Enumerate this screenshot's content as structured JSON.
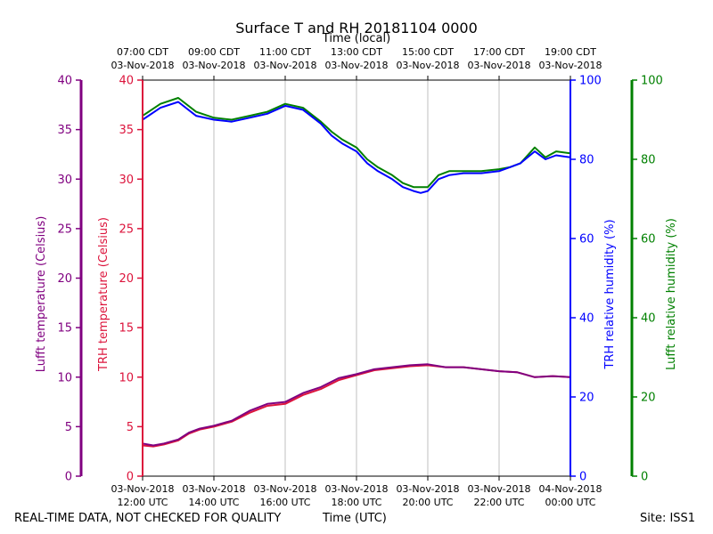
{
  "chart_data": {
    "type": "line",
    "title": "Surface T and RH 20181104 0000",
    "xlabel_bottom": "Time (UTC)",
    "xlabel_top": "Time (local)",
    "x_unit": "hours UTC (relative to 03-Nov-2018 00:00 UTC)",
    "xlim": [
      12,
      24
    ],
    "bottom_ticks": [
      {
        "x": 12,
        "line1": "03-Nov-2018",
        "line2": "12:00 UTC"
      },
      {
        "x": 14,
        "line1": "03-Nov-2018",
        "line2": "14:00 UTC"
      },
      {
        "x": 16,
        "line1": "03-Nov-2018",
        "line2": "16:00 UTC"
      },
      {
        "x": 18,
        "line1": "03-Nov-2018",
        "line2": "18:00 UTC"
      },
      {
        "x": 20,
        "line1": "03-Nov-2018",
        "line2": "20:00 UTC"
      },
      {
        "x": 22,
        "line1": "03-Nov-2018",
        "line2": "22:00 UTC"
      },
      {
        "x": 24,
        "line1": "04-Nov-2018",
        "line2": "00:00 UTC"
      }
    ],
    "top_ticks": [
      {
        "x": 12,
        "line1": "07:00 CDT",
        "line2": "03-Nov-2018"
      },
      {
        "x": 14,
        "line1": "09:00 CDT",
        "line2": "03-Nov-2018"
      },
      {
        "x": 16,
        "line1": "11:00 CDT",
        "line2": "03-Nov-2018"
      },
      {
        "x": 18,
        "line1": "13:00 CDT",
        "line2": "03-Nov-2018"
      },
      {
        "x": 20,
        "line1": "15:00 CDT",
        "line2": "03-Nov-2018"
      },
      {
        "x": 22,
        "line1": "17:00 CDT",
        "line2": "03-Nov-2018"
      },
      {
        "x": 24,
        "line1": "19:00 CDT",
        "line2": "03-Nov-2018"
      }
    ],
    "axes": {
      "lufft_temp": {
        "label": "Lufft temperature (Celsius)",
        "ylim": [
          0,
          40
        ],
        "ticks": [
          0,
          5,
          10,
          15,
          20,
          25,
          30,
          35,
          40
        ],
        "color": "#800080"
      },
      "trh_temp": {
        "label": "TRH temperature (Celsius)",
        "ylim": [
          0,
          40
        ],
        "ticks": [
          0,
          5,
          10,
          15,
          20,
          25,
          30,
          35,
          40
        ],
        "color": "#dc143c"
      },
      "trh_rh": {
        "label": "TRH relative humidity (%)",
        "ylim": [
          0,
          100
        ],
        "ticks": [
          0,
          20,
          40,
          60,
          80,
          100
        ],
        "color": "#0000ff"
      },
      "lufft_rh": {
        "label": "Lufft relative humidity (%)",
        "ylim": [
          0,
          100
        ],
        "ticks": [
          0,
          20,
          40,
          60,
          80,
          100
        ],
        "color": "#008000"
      }
    },
    "grid": "vertical",
    "series": [
      {
        "name": "Lufft relative humidity",
        "axis": "lufft_rh",
        "color": "#008000",
        "x": [
          12.0,
          12.5,
          13.0,
          13.5,
          14.0,
          14.5,
          15.0,
          15.5,
          16.0,
          16.5,
          17.0,
          17.3,
          17.6,
          18.0,
          18.3,
          18.6,
          19.0,
          19.3,
          19.6,
          19.8,
          20.0,
          20.3,
          20.6,
          21.0,
          21.5,
          22.0,
          22.3,
          22.6,
          23.0,
          23.3,
          23.6,
          24.0
        ],
        "y": [
          91,
          94,
          95.5,
          92,
          90.5,
          90,
          91,
          92,
          94,
          93,
          89.5,
          87,
          85,
          83,
          80,
          78,
          76,
          74,
          73,
          73,
          73,
          76,
          77,
          77,
          77,
          77.5,
          78,
          79,
          83,
          80.5,
          82,
          81.5
        ]
      },
      {
        "name": "TRH relative humidity",
        "axis": "trh_rh",
        "color": "#0000ff",
        "x": [
          12.0,
          12.5,
          13.0,
          13.5,
          14.0,
          14.5,
          15.0,
          15.5,
          16.0,
          16.5,
          17.0,
          17.3,
          17.6,
          18.0,
          18.3,
          18.6,
          19.0,
          19.3,
          19.6,
          19.8,
          20.0,
          20.3,
          20.6,
          21.0,
          21.5,
          22.0,
          22.3,
          22.6,
          23.0,
          23.3,
          23.6,
          24.0
        ],
        "y": [
          90,
          93,
          94.5,
          91,
          90,
          89.5,
          90.5,
          91.5,
          93.5,
          92.5,
          89,
          86,
          84,
          82,
          79,
          77,
          75,
          73,
          72,
          71.5,
          72,
          75,
          76,
          76.5,
          76.5,
          77,
          78,
          79,
          82,
          80,
          81,
          80.5
        ]
      },
      {
        "name": "TRH temperature",
        "axis": "trh_temp",
        "color": "#dc143c",
        "x": [
          12.0,
          12.3,
          12.6,
          13.0,
          13.3,
          13.6,
          14.0,
          14.5,
          15.0,
          15.5,
          16.0,
          16.5,
          17.0,
          17.5,
          18.0,
          18.5,
          19.0,
          19.5,
          20.0,
          20.5,
          21.0,
          21.5,
          22.0,
          22.5,
          23.0,
          23.5,
          24.0
        ],
        "y": [
          3.1,
          3.0,
          3.2,
          3.6,
          4.3,
          4.7,
          5.0,
          5.5,
          6.4,
          7.1,
          7.3,
          8.2,
          8.8,
          9.7,
          10.2,
          10.7,
          10.9,
          11.1,
          11.2,
          11.0,
          11.0,
          10.8,
          10.6,
          10.5,
          10.0,
          10.1,
          10.0
        ]
      },
      {
        "name": "Lufft temperature",
        "axis": "lufft_temp",
        "color": "#800080",
        "x": [
          12.0,
          12.3,
          12.6,
          13.0,
          13.3,
          13.6,
          14.0,
          14.5,
          15.0,
          15.5,
          16.0,
          16.5,
          17.0,
          17.5,
          18.0,
          18.5,
          19.0,
          19.5,
          20.0,
          20.5,
          21.0,
          21.5,
          22.0,
          22.5,
          23.0,
          23.5,
          24.0
        ],
        "y": [
          3.3,
          3.1,
          3.3,
          3.7,
          4.4,
          4.8,
          5.1,
          5.6,
          6.6,
          7.3,
          7.5,
          8.4,
          9.0,
          9.9,
          10.3,
          10.8,
          11.0,
          11.2,
          11.3,
          11.0,
          11.0,
          10.8,
          10.6,
          10.5,
          10.0,
          10.1,
          10.0
        ]
      }
    ]
  },
  "footer": {
    "quality_note": "REAL-TIME DATA, NOT CHECKED FOR QUALITY",
    "time_label": "Time (UTC)",
    "site": "Site: ISS1"
  }
}
